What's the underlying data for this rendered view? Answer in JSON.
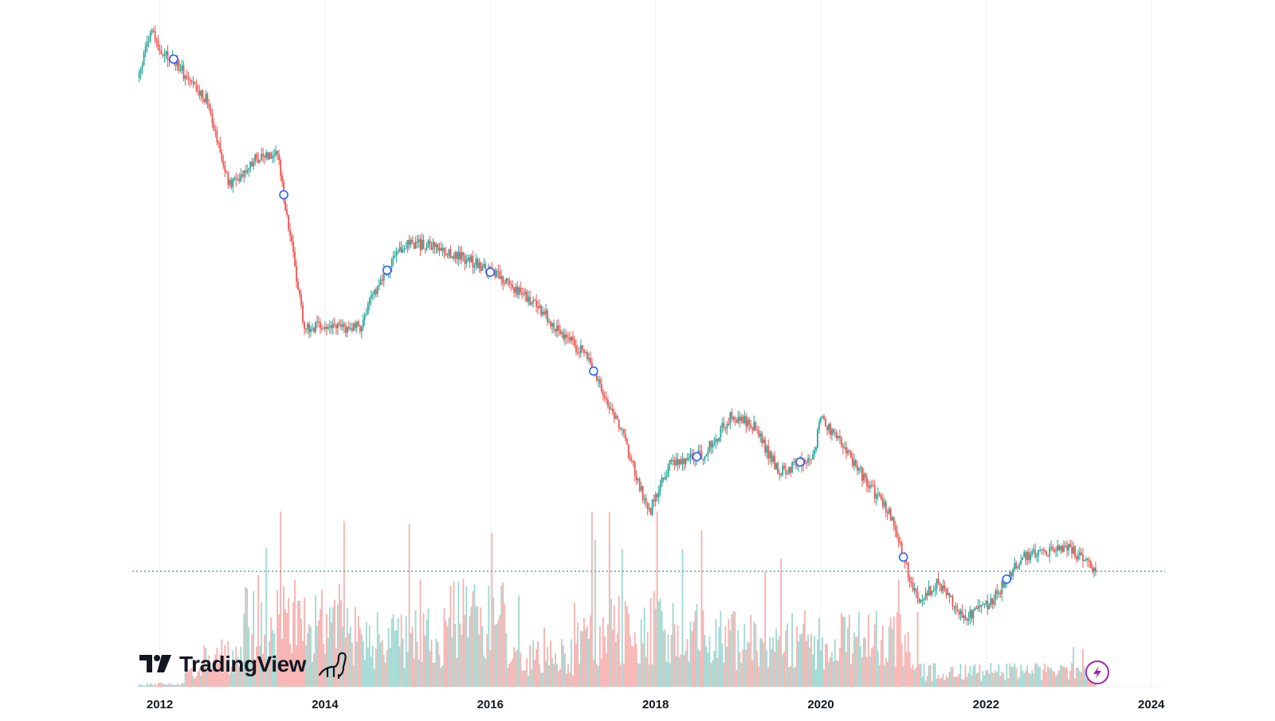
{
  "brand": {
    "name": "TradingView"
  },
  "colors": {
    "up": "#26a69a",
    "down": "#ef5350",
    "volume_up": "#9ed8d1",
    "volume_down": "#f7b0ae",
    "grid": "#eef0f3",
    "price_line": "#26a69a",
    "marker": "#2962ff",
    "flash_badge": "#9c27b0",
    "axis_text": "#131722"
  },
  "chart_data": {
    "type": "candlestick",
    "title": "",
    "xlabel": "",
    "ylabel": "",
    "x_ticks": [
      "2012",
      "2014",
      "2016",
      "2018",
      "2020",
      "2022",
      "2024"
    ],
    "x_range": [
      "2011-09",
      "2024-03"
    ],
    "y_scale": "log",
    "grid": "vertical",
    "last_price_line": true,
    "y_axis_visible": false,
    "volume_pane": true,
    "price_path_relative": [
      {
        "date": "2011-10",
        "value": 0.78
      },
      {
        "date": "2011-11",
        "value": 0.93
      },
      {
        "date": "2011-12",
        "value": 0.99
      },
      {
        "date": "2012-01",
        "value": 0.88
      },
      {
        "date": "2012-03",
        "value": 0.86
      },
      {
        "date": "2012-06",
        "value": 0.74
      },
      {
        "date": "2012-08",
        "value": 0.7
      },
      {
        "date": "2012-11",
        "value": 0.45
      },
      {
        "date": "2013-03",
        "value": 0.52
      },
      {
        "date": "2013-06",
        "value": 0.54
      },
      {
        "date": "2013-10",
        "value": 0.22
      },
      {
        "date": "2014-06",
        "value": 0.22
      },
      {
        "date": "2014-09",
        "value": 0.28
      },
      {
        "date": "2015-01",
        "value": 0.34
      },
      {
        "date": "2015-05",
        "value": 0.33
      },
      {
        "date": "2015-10",
        "value": 0.31
      },
      {
        "date": "2016-02",
        "value": 0.285
      },
      {
        "date": "2016-06",
        "value": 0.26
      },
      {
        "date": "2016-12",
        "value": 0.21
      },
      {
        "date": "2017-03",
        "value": 0.19
      },
      {
        "date": "2017-08",
        "value": 0.13
      },
      {
        "date": "2017-12",
        "value": 0.085
      },
      {
        "date": "2018-03",
        "value": 0.11
      },
      {
        "date": "2018-08",
        "value": 0.115
      },
      {
        "date": "2018-12",
        "value": 0.14
      },
      {
        "date": "2019-03",
        "value": 0.135
      },
      {
        "date": "2019-07",
        "value": 0.105
      },
      {
        "date": "2019-12",
        "value": 0.115
      },
      {
        "date": "2020-01",
        "value": 0.14
      },
      {
        "date": "2020-05",
        "value": 0.115
      },
      {
        "date": "2020-11",
        "value": 0.085
      },
      {
        "date": "2021-03",
        "value": 0.055
      },
      {
        "date": "2021-06",
        "value": 0.06
      },
      {
        "date": "2021-10",
        "value": 0.05
      },
      {
        "date": "2022-02",
        "value": 0.055
      },
      {
        "date": "2022-06",
        "value": 0.068
      },
      {
        "date": "2022-10",
        "value": 0.07
      },
      {
        "date": "2023-01",
        "value": 0.072
      },
      {
        "date": "2023-05",
        "value": 0.064
      }
    ],
    "dividend_markers": [
      "2012-03",
      "2013-07",
      "2014-10",
      "2016-01",
      "2017-04",
      "2018-07",
      "2019-10",
      "2021-01",
      "2022-04"
    ]
  }
}
